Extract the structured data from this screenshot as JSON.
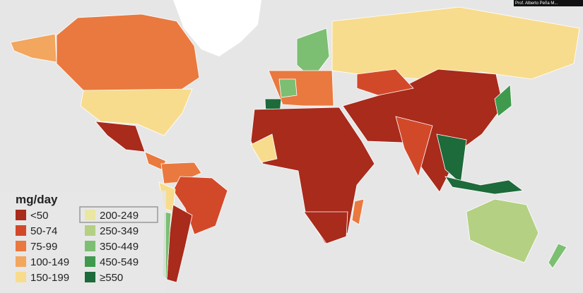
{
  "legend": {
    "title": "mg/day",
    "items": [
      {
        "label": "<50",
        "color": "#a82b1c"
      },
      {
        "label": "50-74",
        "color": "#d2492a"
      },
      {
        "label": "75-99",
        "color": "#e9793f"
      },
      {
        "label": "100-149",
        "color": "#f2a65e"
      },
      {
        "label": "150-199",
        "color": "#f8dc8d"
      },
      {
        "label": "200-249",
        "color": "#e9e7a2"
      },
      {
        "label": "250-349",
        "color": "#b4d083"
      },
      {
        "label": "350-449",
        "color": "#7cbf73"
      },
      {
        "label": "450-549",
        "color": "#3f9a4e"
      },
      {
        "label": "≥550",
        "color": "#1d6a3a"
      }
    ]
  },
  "caption": "Prof. Alberto Peña M..."
}
